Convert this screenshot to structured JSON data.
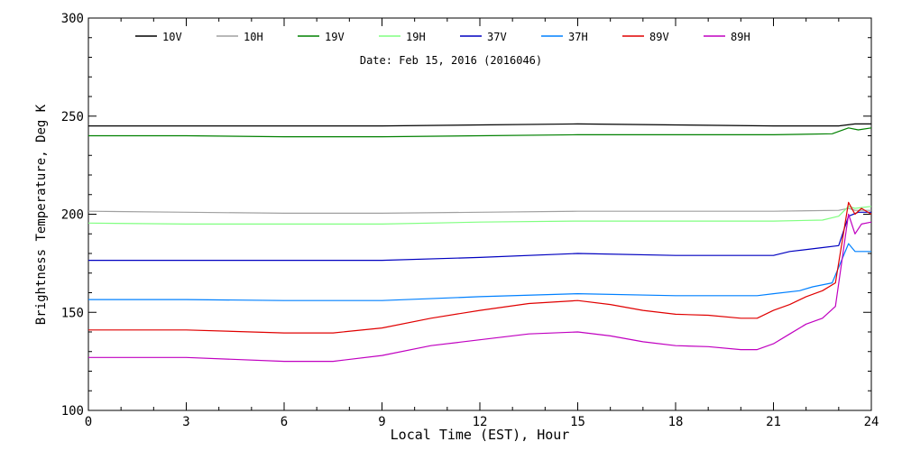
{
  "chart_data": {
    "type": "line",
    "annotation": "Date: Feb 15, 2016 (2016046)",
    "xlabel": "Local Time (EST), Hour",
    "ylabel": "Brightness Temperature, Deg K",
    "xlim": [
      0,
      24
    ],
    "ylim": [
      100,
      300
    ],
    "x_ticks": [
      "0",
      "3",
      "6",
      "9",
      "12",
      "15",
      "18",
      "21",
      "24"
    ],
    "y_ticks": [
      "100",
      "150",
      "200",
      "250",
      "300"
    ],
    "legend_position": "top",
    "grid": false,
    "series": [
      {
        "name": "10V",
        "color": "#000000",
        "points": [
          [
            0,
            245
          ],
          [
            3,
            245
          ],
          [
            6,
            245
          ],
          [
            9,
            245
          ],
          [
            12,
            245.5
          ],
          [
            15,
            246
          ],
          [
            18,
            245.5
          ],
          [
            21,
            245
          ],
          [
            23,
            245
          ],
          [
            23.5,
            246
          ],
          [
            24,
            246
          ]
        ]
      },
      {
        "name": "10H",
        "color": "#a0a0a0",
        "points": [
          [
            0,
            201.5
          ],
          [
            3,
            201
          ],
          [
            6,
            200.5
          ],
          [
            9,
            200.5
          ],
          [
            12,
            201
          ],
          [
            15,
            201.5
          ],
          [
            18,
            201.5
          ],
          [
            21,
            201.5
          ],
          [
            23,
            202
          ],
          [
            23.3,
            203
          ],
          [
            23.5,
            202
          ],
          [
            24,
            202
          ]
        ]
      },
      {
        "name": "19V",
        "color": "#008000",
        "points": [
          [
            0,
            240
          ],
          [
            3,
            240
          ],
          [
            6,
            239.5
          ],
          [
            9,
            239.5
          ],
          [
            12,
            240
          ],
          [
            15,
            240.5
          ],
          [
            18,
            240.5
          ],
          [
            21,
            240.5
          ],
          [
            22.8,
            241
          ],
          [
            23.3,
            244
          ],
          [
            23.6,
            243
          ],
          [
            24,
            244
          ]
        ]
      },
      {
        "name": "19H",
        "color": "#80ff80",
        "points": [
          [
            0,
            195.5
          ],
          [
            3,
            195
          ],
          [
            6,
            195
          ],
          [
            9,
            195
          ],
          [
            12,
            196
          ],
          [
            15,
            196.5
          ],
          [
            18,
            196.5
          ],
          [
            21,
            196.5
          ],
          [
            22.5,
            197
          ],
          [
            23,
            199
          ],
          [
            23.3,
            204
          ],
          [
            23.5,
            203
          ],
          [
            24,
            204
          ]
        ]
      },
      {
        "name": "37V",
        "color": "#0000c0",
        "points": [
          [
            0,
            176.5
          ],
          [
            3,
            176.5
          ],
          [
            6,
            176.5
          ],
          [
            9,
            176.5
          ],
          [
            12,
            178
          ],
          [
            15,
            180
          ],
          [
            18,
            179
          ],
          [
            21,
            179
          ],
          [
            21.5,
            181
          ],
          [
            22.5,
            183
          ],
          [
            23,
            184
          ],
          [
            23.3,
            199
          ],
          [
            23.6,
            201
          ],
          [
            24,
            201
          ]
        ]
      },
      {
        "name": "37H",
        "color": "#0080ff",
        "points": [
          [
            0,
            156.5
          ],
          [
            3,
            156.5
          ],
          [
            6,
            156
          ],
          [
            9,
            156
          ],
          [
            12,
            158
          ],
          [
            15,
            159.5
          ],
          [
            18,
            158.5
          ],
          [
            20.5,
            158.5
          ],
          [
            21,
            159.5
          ],
          [
            21.8,
            161
          ],
          [
            22.2,
            163
          ],
          [
            22.8,
            165
          ],
          [
            23.3,
            185
          ],
          [
            23.5,
            181
          ],
          [
            24,
            181
          ]
        ]
      },
      {
        "name": "89V",
        "color": "#e00000",
        "points": [
          [
            0,
            141
          ],
          [
            3,
            141
          ],
          [
            6,
            139.5
          ],
          [
            7.5,
            139.5
          ],
          [
            9,
            142
          ],
          [
            10.5,
            147
          ],
          [
            12,
            151
          ],
          [
            13.5,
            154.5
          ],
          [
            15,
            156
          ],
          [
            16,
            154
          ],
          [
            17,
            151
          ],
          [
            18,
            149
          ],
          [
            19,
            148.5
          ],
          [
            20,
            147
          ],
          [
            20.5,
            147
          ],
          [
            21,
            151
          ],
          [
            21.5,
            154
          ],
          [
            22,
            158
          ],
          [
            22.5,
            161
          ],
          [
            22.9,
            165
          ],
          [
            23.3,
            206
          ],
          [
            23.5,
            200
          ],
          [
            23.7,
            203
          ],
          [
            24,
            200
          ]
        ]
      },
      {
        "name": "89H",
        "color": "#c000c0",
        "points": [
          [
            0,
            127
          ],
          [
            3,
            127
          ],
          [
            6,
            125
          ],
          [
            7.5,
            125
          ],
          [
            9,
            128
          ],
          [
            10.5,
            133
          ],
          [
            12,
            136
          ],
          [
            13.5,
            139
          ],
          [
            15,
            140
          ],
          [
            16,
            138
          ],
          [
            17,
            135
          ],
          [
            18,
            133
          ],
          [
            19,
            132.5
          ],
          [
            20,
            131
          ],
          [
            20.5,
            131
          ],
          [
            21,
            134
          ],
          [
            21.5,
            139
          ],
          [
            22,
            144
          ],
          [
            22.5,
            147
          ],
          [
            22.9,
            153
          ],
          [
            23.3,
            200
          ],
          [
            23.5,
            190
          ],
          [
            23.7,
            195
          ],
          [
            24,
            196
          ]
        ]
      }
    ]
  }
}
